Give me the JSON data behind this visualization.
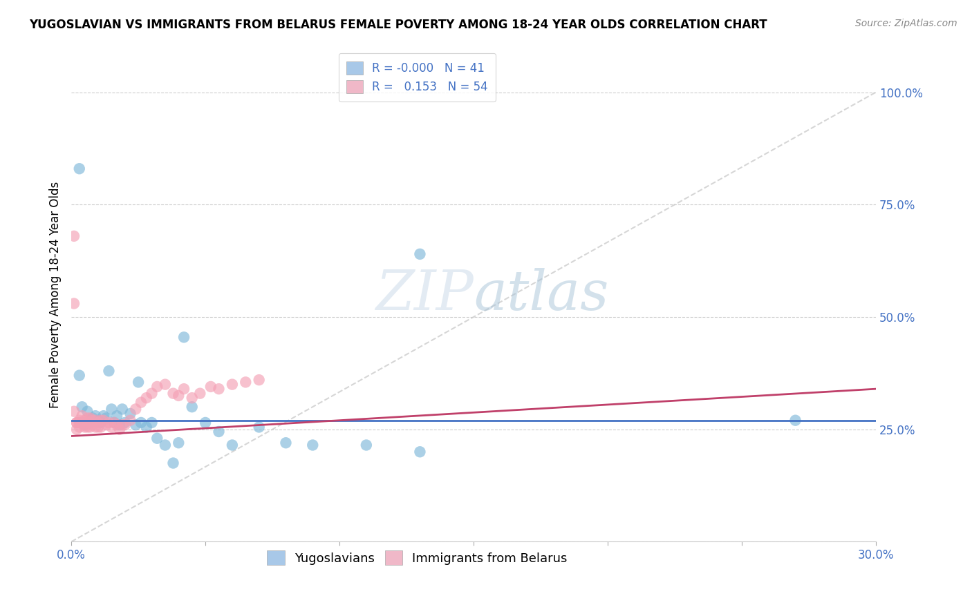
{
  "title": "YUGOSLAVIAN VS IMMIGRANTS FROM BELARUS FEMALE POVERTY AMONG 18-24 YEAR OLDS CORRELATION CHART",
  "source": "Source: ZipAtlas.com",
  "ylabel": "Female Poverty Among 18-24 Year Olds",
  "xlim": [
    0.0,
    0.3
  ],
  "ylim": [
    0.0,
    1.1
  ],
  "yticks": [
    0.0,
    0.25,
    0.5,
    0.75,
    1.0
  ],
  "ytick_labels": [
    "",
    "25.0%",
    "50.0%",
    "75.0%",
    "100.0%"
  ],
  "xtick_positions": [
    0.0,
    0.05,
    0.1,
    0.15,
    0.2,
    0.25,
    0.3
  ],
  "xtick_labels": [
    "0.0%",
    "",
    "",
    "",
    "",
    "",
    "30.0%"
  ],
  "group1_name": "Yugoslavians",
  "group2_name": "Immigrants from Belarus",
  "blue_color": "#7eb8d9",
  "pink_color": "#f4a0b5",
  "trend_blue_color": "#4472c4",
  "trend_pink_color": "#c0406a",
  "watermark": "ZIPatlas",
  "legend_blue_color": "#a8c8e8",
  "legend_pink_color": "#f0b8c8",
  "R1": -0.0,
  "N1": 41,
  "R2": 0.153,
  "N2": 54,
  "blue_trend_y": 0.27,
  "blue_scatter_x": [
    0.003,
    0.003,
    0.004,
    0.005,
    0.006,
    0.007,
    0.008,
    0.009,
    0.01,
    0.011,
    0.012,
    0.013,
    0.014,
    0.015,
    0.016,
    0.017,
    0.018,
    0.019,
    0.02,
    0.022,
    0.024,
    0.025,
    0.026,
    0.028,
    0.03,
    0.032,
    0.035,
    0.038,
    0.04,
    0.042,
    0.045,
    0.05,
    0.055,
    0.06,
    0.07,
    0.08,
    0.09,
    0.11,
    0.13,
    0.27,
    0.13
  ],
  "blue_scatter_y": [
    0.83,
    0.37,
    0.3,
    0.26,
    0.29,
    0.265,
    0.275,
    0.28,
    0.27,
    0.265,
    0.28,
    0.275,
    0.38,
    0.295,
    0.265,
    0.28,
    0.26,
    0.295,
    0.265,
    0.285,
    0.26,
    0.355,
    0.265,
    0.255,
    0.265,
    0.23,
    0.215,
    0.175,
    0.22,
    0.455,
    0.3,
    0.265,
    0.245,
    0.215,
    0.255,
    0.22,
    0.215,
    0.215,
    0.2,
    0.27,
    0.64
  ],
  "pink_scatter_x": [
    0.001,
    0.001,
    0.001,
    0.002,
    0.002,
    0.002,
    0.003,
    0.003,
    0.003,
    0.004,
    0.004,
    0.005,
    0.005,
    0.005,
    0.006,
    0.006,
    0.006,
    0.007,
    0.007,
    0.007,
    0.008,
    0.008,
    0.009,
    0.009,
    0.01,
    0.01,
    0.011,
    0.011,
    0.012,
    0.013,
    0.014,
    0.015,
    0.016,
    0.017,
    0.018,
    0.019,
    0.02,
    0.022,
    0.024,
    0.026,
    0.028,
    0.03,
    0.032,
    0.035,
    0.038,
    0.04,
    0.042,
    0.045,
    0.048,
    0.052,
    0.055,
    0.06,
    0.065,
    0.07
  ],
  "pink_scatter_y": [
    0.68,
    0.53,
    0.29,
    0.265,
    0.25,
    0.265,
    0.27,
    0.265,
    0.255,
    0.28,
    0.265,
    0.27,
    0.26,
    0.255,
    0.275,
    0.265,
    0.255,
    0.275,
    0.265,
    0.255,
    0.27,
    0.26,
    0.27,
    0.255,
    0.265,
    0.255,
    0.27,
    0.255,
    0.27,
    0.26,
    0.265,
    0.255,
    0.265,
    0.26,
    0.25,
    0.26,
    0.26,
    0.27,
    0.295,
    0.31,
    0.32,
    0.33,
    0.345,
    0.35,
    0.33,
    0.325,
    0.34,
    0.32,
    0.33,
    0.345,
    0.34,
    0.35,
    0.355,
    0.36
  ],
  "pink_trend_x0": 0.0,
  "pink_trend_y0": 0.235,
  "pink_trend_x1": 0.3,
  "pink_trend_y1": 0.34
}
